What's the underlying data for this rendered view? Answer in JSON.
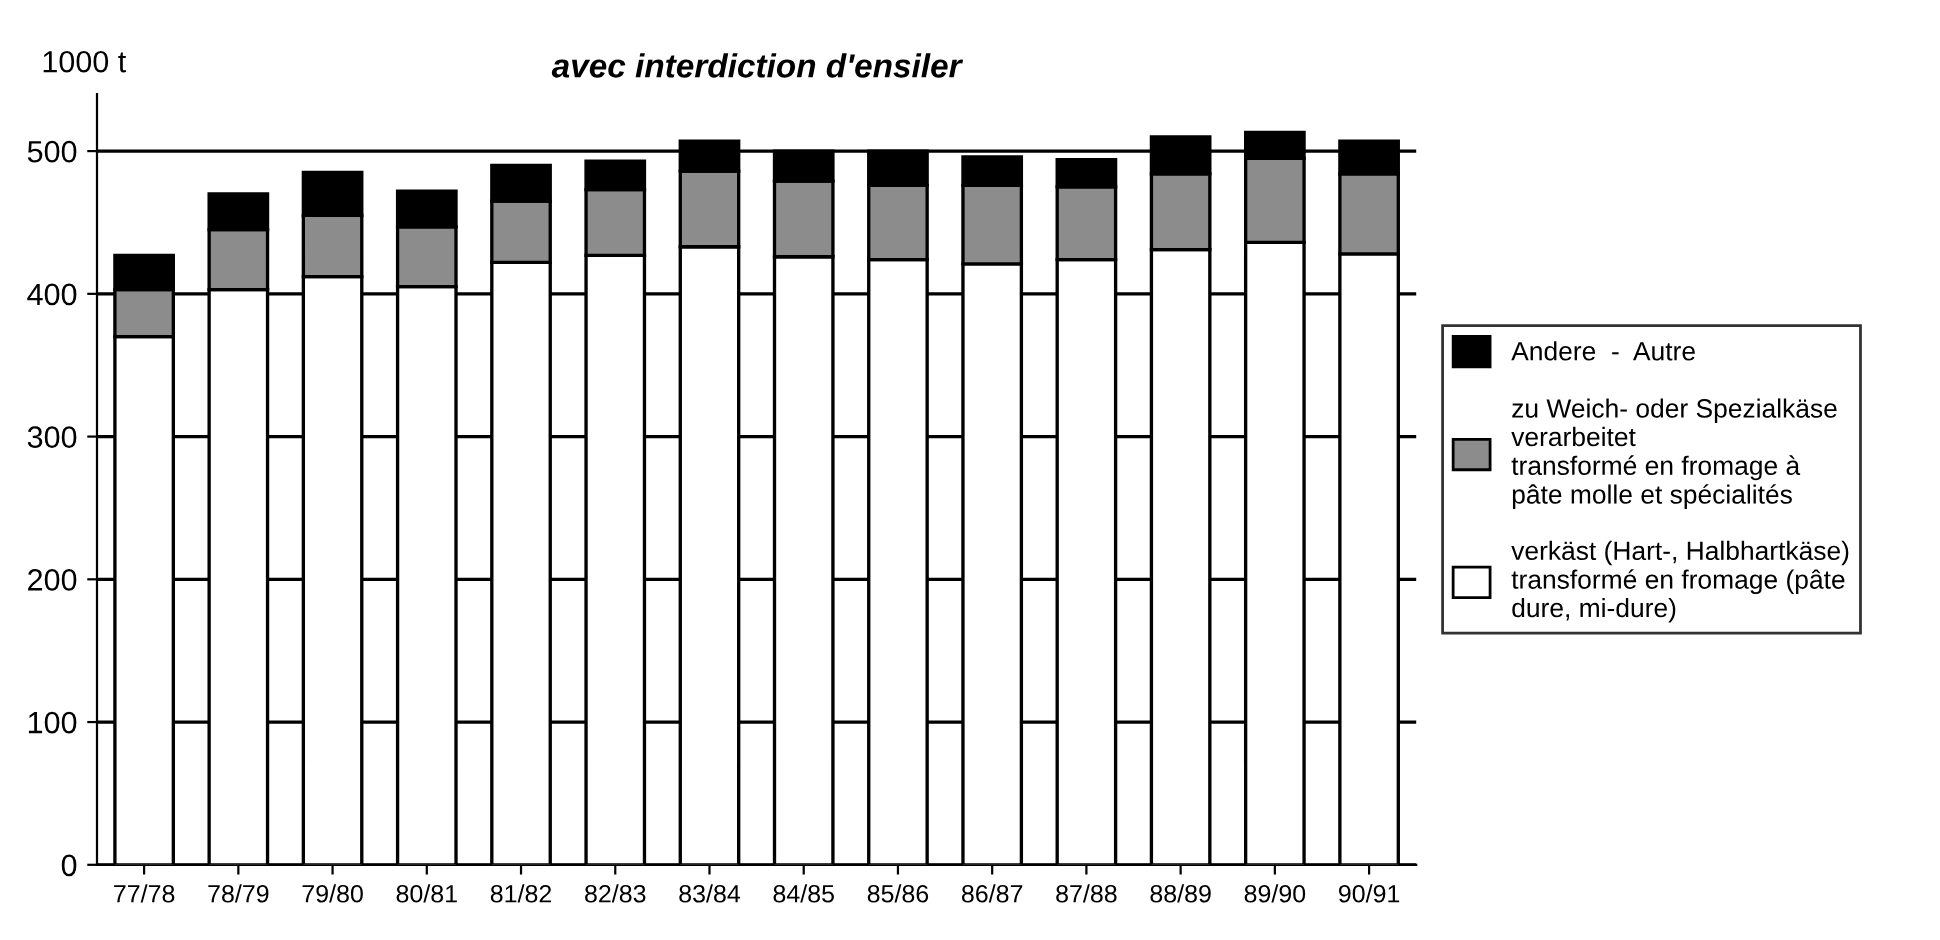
{
  "chart_data": {
    "type": "bar",
    "stacked": true,
    "title": "avec interdiction d'ensiler",
    "ylabel": "1000 t",
    "categories": [
      "77/78",
      "78/79",
      "79/80",
      "80/81",
      "81/82",
      "82/83",
      "83/84",
      "84/85",
      "85/86",
      "86/87",
      "87/88",
      "88/89",
      "89/90",
      "90/91"
    ],
    "series": [
      {
        "name": "verkäst (Hart-, Halbhartkäse)\ntransformé en fromage (pâte\ndure, mi-dure)",
        "color": "#ffffff",
        "values": [
          370,
          403,
          412,
          405,
          422,
          427,
          433,
          426,
          424,
          421,
          424,
          431,
          436,
          428
        ]
      },
      {
        "name": "zu Weich- oder Spezialkäse\nverarbeitet\ntransformé en fromage à\npâte molle et spécialités",
        "color": "#8c8c8c",
        "values": [
          33,
          42,
          43,
          42,
          43,
          46,
          53,
          53,
          52,
          55,
          51,
          53,
          59,
          56
        ]
      },
      {
        "name": "Andere  -  Autre",
        "color": "#000000",
        "values": [
          24,
          25,
          30,
          25,
          25,
          20,
          21,
          21,
          24,
          20,
          19,
          26,
          18,
          23
        ]
      }
    ],
    "ylim": [
      0,
      540
    ],
    "yticks": [
      0,
      100,
      200,
      300,
      400,
      500
    ],
    "grid": "y",
    "legend": "right"
  }
}
